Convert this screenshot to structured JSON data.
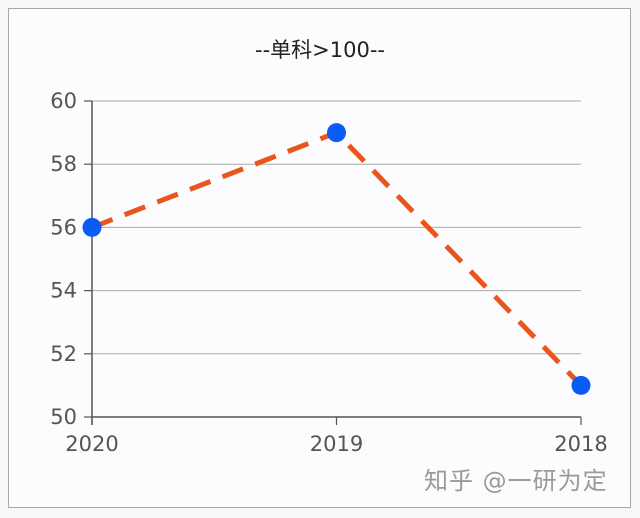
{
  "chart_data": {
    "type": "line",
    "title": "--单科>100--",
    "xlabel": "",
    "ylabel": "",
    "categories": [
      "2020",
      "2019",
      "2018"
    ],
    "series": [
      {
        "name": "单科>100",
        "values": [
          56,
          59,
          51
        ],
        "line_color": "#e8561b",
        "line_style": "dashed",
        "marker_color": "#0a5cf5"
      }
    ],
    "ylim": [
      50,
      60
    ],
    "yticks": [
      "50",
      "52",
      "54",
      "56",
      "58",
      "60"
    ],
    "grid": true,
    "legend": "none"
  },
  "watermark": "知乎 @一研为定"
}
